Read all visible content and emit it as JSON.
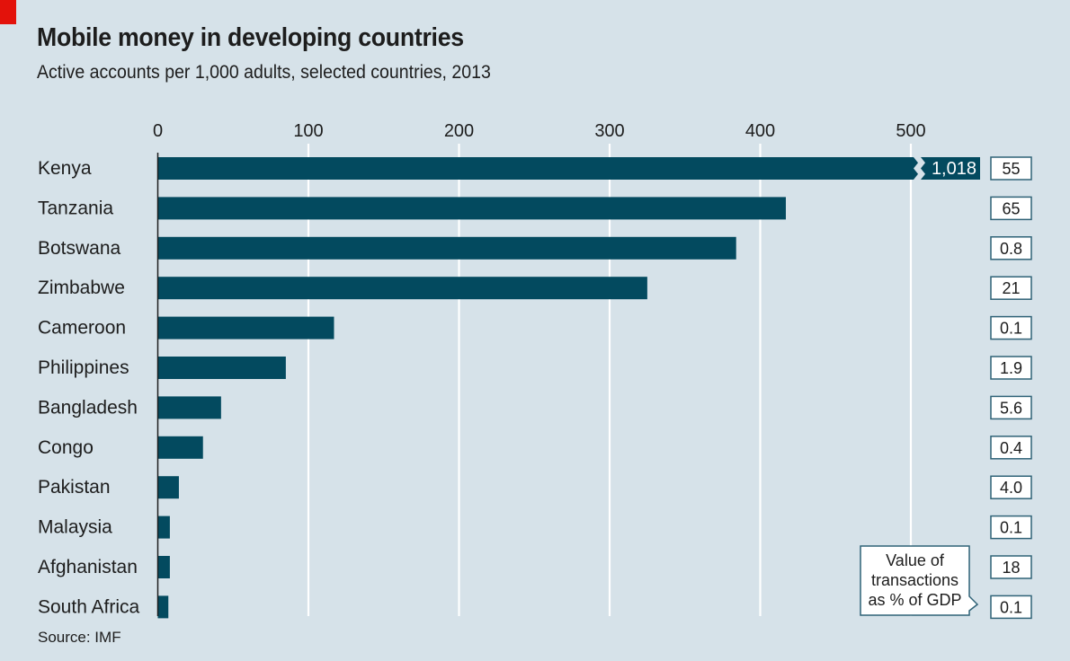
{
  "header": {
    "title": "Mobile money in developing countries",
    "subtitle": "Active accounts per 1,000 adults, selected countries, 2013",
    "source": "Source: IMF"
  },
  "colors": {
    "background": "#d6e2e9",
    "bar": "#034a5f",
    "accent_tag": "#e3120b",
    "gridline": "#ffffff",
    "box_border": "#2f6277"
  },
  "chart_data": {
    "type": "bar",
    "orientation": "horizontal",
    "title": "Mobile money in developing countries",
    "subtitle": "Active accounts per 1,000 adults, selected countries, 2013",
    "xlabel": "",
    "ylabel": "",
    "xlim": [
      0,
      550
    ],
    "xticks": [
      0,
      100,
      200,
      300,
      400,
      500
    ],
    "xtick_labels": [
      "0",
      "100",
      "200",
      "300",
      "400",
      "500"
    ],
    "grid": true,
    "axis_break": {
      "category": "Kenya",
      "value": 1018,
      "label": "1,018"
    },
    "categories": [
      "Kenya",
      "Tanzania",
      "Botswana",
      "Zimbabwe",
      "Cameroon",
      "Philippines",
      "Bangladesh",
      "Congo",
      "Pakistan",
      "Malaysia",
      "Afghanistan",
      "South Africa"
    ],
    "series": [
      {
        "name": "Active accounts per 1,000 adults",
        "values": [
          1018,
          417,
          384,
          325,
          117,
          85,
          42,
          30,
          14,
          8,
          8,
          7
        ]
      },
      {
        "name": "Value of transactions as % of GDP",
        "values": [
          55,
          65,
          0.8,
          21,
          0.1,
          1.9,
          5.6,
          0.4,
          4.0,
          0.1,
          18,
          0.1
        ],
        "labels": [
          "55",
          "65",
          "0.8",
          "21",
          "0.1",
          "1.9",
          "5.6",
          "0.4",
          "4.0",
          "0.1",
          "18",
          "0.1"
        ]
      }
    ],
    "annotations": [
      {
        "text_lines": [
          "Value of",
          "transactions",
          "as % of GDP"
        ],
        "points_to": "value boxes column"
      }
    ],
    "source": "Source: IMF"
  }
}
